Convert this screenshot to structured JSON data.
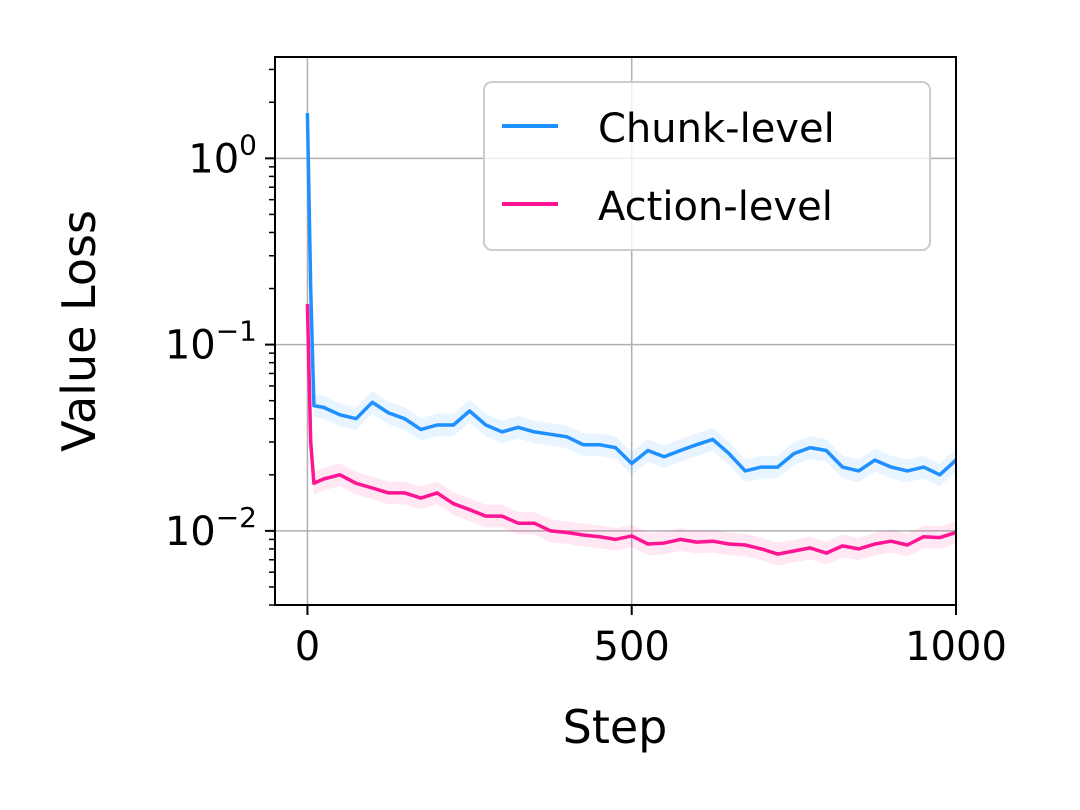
{
  "chart_data": {
    "type": "line",
    "title": "",
    "xlabel": "Step",
    "ylabel": "Value Loss",
    "xlim": [
      -50,
      1000
    ],
    "ylim": [
      0.004,
      3.5
    ],
    "yscale": "log",
    "grid": true,
    "legend_position": "top-right",
    "xticks": [
      0,
      500,
      1000
    ],
    "xtick_labels": [
      "0",
      "500",
      "1000"
    ],
    "yticks": [
      0.01,
      0.1,
      1
    ],
    "ytick_labels": [
      {
        "base": "10",
        "exp": "−2"
      },
      {
        "base": "10",
        "exp": "−1"
      },
      {
        "base": "10",
        "exp": "0"
      }
    ],
    "x": [
      0,
      5,
      10,
      25,
      50,
      75,
      100,
      125,
      150,
      175,
      200,
      225,
      250,
      275,
      300,
      325,
      350,
      375,
      400,
      425,
      450,
      475,
      500,
      525,
      550,
      575,
      600,
      625,
      650,
      675,
      700,
      725,
      750,
      775,
      800,
      825,
      850,
      875,
      900,
      925,
      950,
      975,
      1000
    ],
    "series": [
      {
        "name": "Chunk-level",
        "color": "#1e90ff",
        "values": [
          1.75,
          0.2,
          0.047,
          0.046,
          0.042,
          0.04,
          0.049,
          0.043,
          0.04,
          0.035,
          0.037,
          0.037,
          0.044,
          0.037,
          0.034,
          0.036,
          0.034,
          0.033,
          0.032,
          0.029,
          0.029,
          0.028,
          0.023,
          0.027,
          0.025,
          0.027,
          0.029,
          0.031,
          0.026,
          0.021,
          0.022,
          0.022,
          0.026,
          0.028,
          0.027,
          0.022,
          0.021,
          0.024,
          0.022,
          0.021,
          0.022,
          0.02,
          0.024
        ]
      },
      {
        "name": "Action-level",
        "color": "#ff1493",
        "values": [
          0.165,
          0.03,
          0.018,
          0.019,
          0.02,
          0.018,
          0.017,
          0.016,
          0.016,
          0.015,
          0.016,
          0.014,
          0.013,
          0.012,
          0.012,
          0.011,
          0.011,
          0.01,
          0.0098,
          0.0095,
          0.0093,
          0.009,
          0.0094,
          0.0085,
          0.0086,
          0.009,
          0.0087,
          0.0088,
          0.0085,
          0.0084,
          0.008,
          0.0075,
          0.0078,
          0.0081,
          0.0076,
          0.0083,
          0.008,
          0.0085,
          0.0088,
          0.0084,
          0.0093,
          0.0092,
          0.0098
        ]
      }
    ]
  }
}
